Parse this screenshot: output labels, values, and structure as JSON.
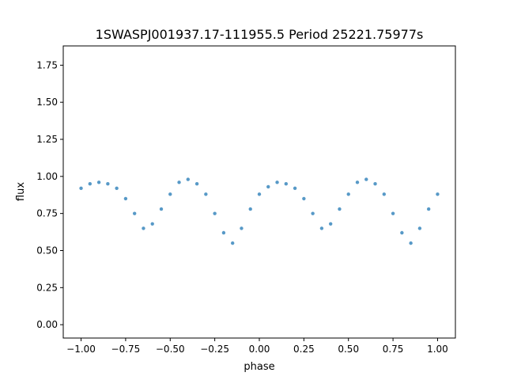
{
  "chart_data": {
    "type": "scatter",
    "title": "1SWASPJ001937.17-111955.5 Period 25221.75977s",
    "xlabel": "phase",
    "ylabel": "flux",
    "xlim": [
      -1.1,
      1.1
    ],
    "ylim": [
      -0.09,
      1.88
    ],
    "xticks": [
      -1.0,
      -0.75,
      -0.5,
      -0.25,
      0.0,
      0.25,
      0.5,
      0.75,
      1.0
    ],
    "xtick_labels": [
      "−1.00",
      "−0.75",
      "−0.50",
      "−0.25",
      "0.00",
      "0.25",
      "0.50",
      "0.75",
      "1.00"
    ],
    "yticks": [
      0.0,
      0.25,
      0.5,
      0.75,
      1.0,
      1.25,
      1.5,
      1.75
    ],
    "ytick_labels": [
      "0.00",
      "0.25",
      "0.50",
      "0.75",
      "1.00",
      "1.25",
      "1.50",
      "1.75"
    ],
    "grid": false,
    "marker_color": "#1f77b4",
    "series": [
      {
        "x": [
          -1.0,
          -0.95,
          -0.9,
          -0.85,
          -0.8,
          -0.75,
          -0.7,
          -0.65,
          -0.6,
          -0.55,
          -0.5,
          -0.45,
          -0.4,
          -0.35,
          -0.3,
          -0.25,
          -0.2,
          -0.15,
          -0.1,
          -0.05,
          0.0,
          0.05,
          0.1,
          0.15,
          0.2,
          0.25,
          0.3,
          0.35,
          0.4,
          0.45,
          0.5,
          0.55,
          0.6,
          0.65,
          0.7,
          0.75,
          0.8,
          0.85,
          0.9,
          0.95,
          1.0
        ],
        "y": [
          0.92,
          0.95,
          0.96,
          0.95,
          0.92,
          0.85,
          0.75,
          0.65,
          0.68,
          0.78,
          0.88,
          0.96,
          0.98,
          0.95,
          0.88,
          0.75,
          0.62,
          0.55,
          0.65,
          0.78,
          0.88,
          0.93,
          0.96,
          0.95,
          0.92,
          0.85,
          0.75,
          0.65,
          0.68,
          0.78,
          0.88,
          0.96,
          0.98,
          0.95,
          0.88,
          0.75,
          0.62,
          0.55,
          0.65,
          0.78,
          0.88
        ]
      }
    ]
  }
}
